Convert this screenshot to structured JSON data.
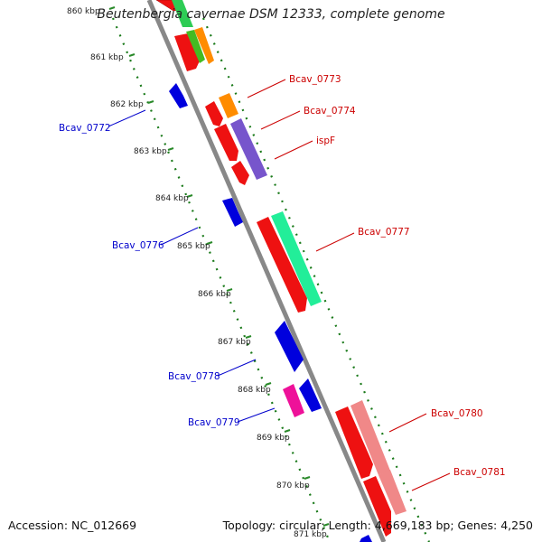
{
  "title": "Beutenbergia cavernae DSM 12333, complete genome",
  "footer": {
    "accession": "Accession: NC_012669",
    "summary": "Topology: circular; Length: 4,669,183 bp; Genes: 4,250"
  },
  "ticks": [
    "860 kbp",
    "861 kbp",
    "862 kbp",
    "863 kbp",
    "864 kbp",
    "865 kbp",
    "866 kbp",
    "867 kbp",
    "868 kbp",
    "869 kbp",
    "870 kbp",
    "871 kbp"
  ],
  "labels": {
    "bcav_0773": "Bcav_0773",
    "bcav_0774": "Bcav_0774",
    "ispF": "ispF",
    "bcav_0777": "Bcav_0777",
    "bcav_0780": "Bcav_0780",
    "bcav_0781": "Bcav_0781",
    "bcav_0772": "Bcav_0772",
    "bcav_0776": "Bcav_0776",
    "bcav_0778": "Bcav_0778",
    "bcav_0779": "Bcav_0779"
  },
  "colors": {
    "forward_label": "#cc0000",
    "reverse_label": "#0000cc",
    "cds": "#ee0000",
    "reverse_cds": "#0000ee",
    "backbone": "#888888",
    "ticks": "#228822"
  }
}
